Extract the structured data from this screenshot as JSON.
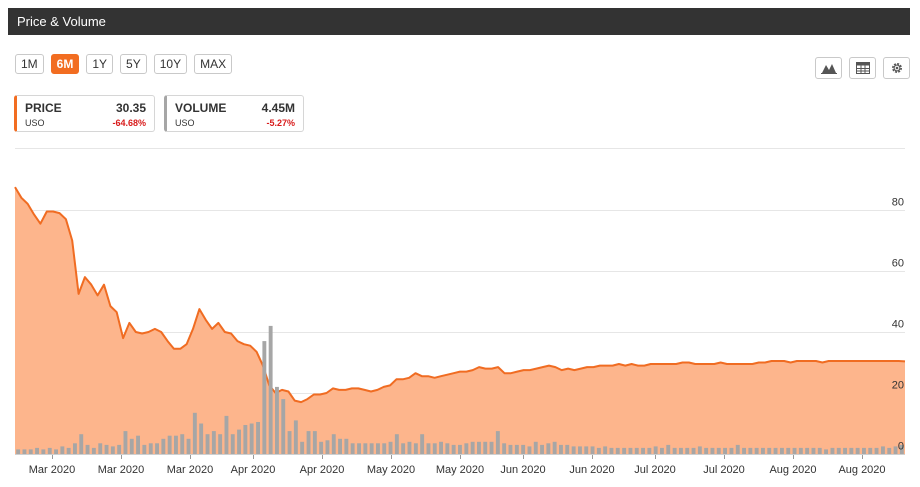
{
  "header": {
    "title": "Price & Volume"
  },
  "range_buttons": [
    {
      "label": "1M",
      "active": false
    },
    {
      "label": "6M",
      "active": true
    },
    {
      "label": "1Y",
      "active": false
    },
    {
      "label": "5Y",
      "active": false
    },
    {
      "label": "10Y",
      "active": false
    },
    {
      "label": "MAX",
      "active": false
    }
  ],
  "tools": [
    {
      "icon": "mountain-chart-icon"
    },
    {
      "icon": "table-icon"
    },
    {
      "icon": "gear-icon"
    }
  ],
  "legend": {
    "price": {
      "name": "PRICE",
      "value": "30.35",
      "symbol": "USO",
      "change": "-64.68%"
    },
    "volume": {
      "name": "VOLUME",
      "value": "4.45M",
      "symbol": "USO",
      "change": "-5.27%"
    }
  },
  "colors": {
    "accent": "#f26d21",
    "area_fill": "#fdb58c",
    "line": "#f06c22",
    "volume": "#a6a6a6",
    "negative": "#d81b1b"
  },
  "chart_data": {
    "type": "area",
    "title": "",
    "xlabel": "",
    "ylabel": "",
    "ylim": [
      0,
      88
    ],
    "yticks": [
      0,
      20,
      40,
      60,
      80
    ],
    "x_tick_labels": [
      "Mar 2020",
      "Mar 2020",
      "Mar 2020",
      "Apr 2020",
      "Apr 2020",
      "May 2020",
      "May 2020",
      "Jun 2020",
      "Jun 2020",
      "Jul 2020",
      "Jul 2020",
      "Aug 2020",
      "Aug 2020"
    ],
    "grid": true,
    "series": [
      {
        "type": "area",
        "values": [
          87.5,
          84,
          82,
          78.5,
          75.5,
          79.5,
          79.5,
          79,
          77,
          70,
          52.5,
          58,
          55.5,
          52,
          55.5,
          48.5,
          46.5,
          38,
          43,
          40,
          39.5,
          40,
          41,
          40,
          37,
          34.5,
          34.5,
          36,
          41,
          47.5,
          44,
          41,
          43,
          40,
          39.5,
          37,
          36,
          35.5,
          33.5,
          29,
          22.5,
          20,
          21,
          20.5,
          17.5,
          17,
          18,
          19.5,
          19.5,
          20,
          21.5,
          21,
          21,
          21.5,
          21.5,
          21,
          20.5,
          21,
          22,
          22.5,
          24.5,
          24.5,
          25,
          26.5,
          25.5,
          25.5,
          25,
          25.5,
          26,
          26.5,
          27,
          27,
          27.5,
          28.5,
          28,
          28,
          28.5,
          26.5,
          26.5,
          27,
          27.5,
          27.5,
          28,
          28.5,
          29,
          28.5,
          27.5,
          28,
          27.5,
          28,
          28.5,
          28.5,
          29,
          29,
          29,
          29.5,
          29,
          29.5,
          29,
          29,
          29.5,
          29.5,
          29.5,
          29.5,
          29.5,
          30,
          30,
          29.5,
          29.5,
          29.5,
          29.5,
          30,
          29.5,
          29.5,
          29.5,
          29.5,
          29.5,
          30,
          30,
          30.5,
          30.5,
          30.5,
          30,
          30.5,
          30.5,
          30.5,
          30.5,
          30,
          30.5,
          30.5,
          30.5,
          30.5,
          30.5,
          30.5,
          30.5,
          30.5,
          30.5,
          30.5,
          30.5,
          30.5,
          30.35
        ]
      },
      {
        "type": "bar",
        "values": [
          1.5,
          1.5,
          1.5,
          2,
          1.5,
          2,
          1.5,
          2.5,
          2,
          3.5,
          6.5,
          3,
          2,
          3.5,
          3,
          2.5,
          3,
          7.5,
          5,
          6,
          3,
          3.5,
          3.5,
          5,
          6,
          6,
          6.5,
          5,
          13.5,
          10,
          6.5,
          7.5,
          6.5,
          12.5,
          6.5,
          8,
          9.5,
          10,
          10.5,
          37,
          42,
          22,
          18,
          7.5,
          11,
          4,
          7.5,
          7.5,
          4,
          4.5,
          6.5,
          5,
          5,
          3.5,
          3.5,
          3.5,
          3.5,
          3.5,
          3.5,
          4,
          6.5,
          3.5,
          4,
          3.5,
          6.5,
          3.5,
          3.5,
          4,
          3.5,
          3,
          3,
          3.5,
          4,
          4,
          4,
          4,
          7.5,
          3.5,
          3,
          3,
          3,
          2.5,
          4,
          3,
          3.5,
          4,
          3,
          3,
          2.5,
          2.5,
          2.5,
          2.5,
          2,
          2.5,
          2,
          2,
          2,
          2,
          2,
          2,
          2,
          2.5,
          2,
          3,
          2,
          2,
          2,
          2,
          2.5,
          2,
          2,
          2,
          2,
          2,
          3,
          2,
          2,
          2,
          2,
          2,
          2,
          2,
          2,
          2,
          2,
          2,
          2,
          2,
          1.5,
          2,
          2,
          2,
          2,
          2,
          2,
          2,
          2,
          2.5,
          2,
          2.5,
          3
        ]
      }
    ]
  }
}
